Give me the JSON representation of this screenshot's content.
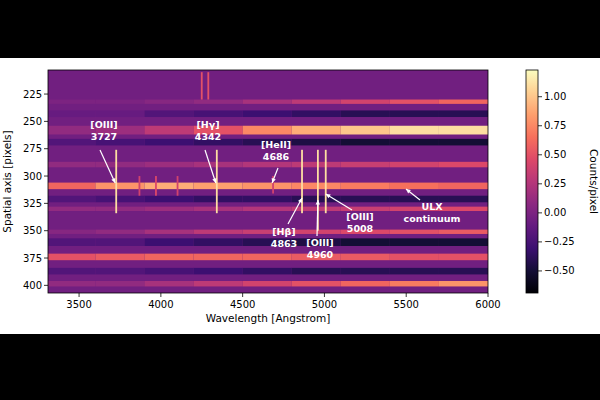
{
  "chart_data": {
    "type": "heatmap",
    "x_label": "Wavelength [Angstrom]",
    "y_label": "Spatial axis [pixels]",
    "xlim": [
      3310,
      6000
    ],
    "xticks": [
      3500,
      4000,
      4500,
      5000,
      5500,
      6000
    ],
    "ylim": [
      407,
      203
    ],
    "yticks": [
      225,
      250,
      275,
      300,
      325,
      350,
      375,
      400
    ],
    "background": -0.05,
    "x_bins": [
      3310,
      3600,
      3900,
      4200,
      4500,
      4800,
      5100,
      5400,
      5700,
      6000
    ],
    "rows": [
      {
        "y_range": [
          266,
          272
        ],
        "values": [
          -0.2,
          -0.25,
          -0.3,
          -0.35,
          -0.4,
          -0.45,
          -0.5,
          -0.5,
          -0.5
        ]
      },
      {
        "y_range": [
          318,
          324
        ],
        "values": [
          -0.2,
          -0.25,
          -0.3,
          -0.35,
          -0.35,
          -0.4,
          -0.4,
          -0.4,
          -0.4
        ]
      },
      {
        "y_range": [
          357,
          364
        ],
        "values": [
          -0.2,
          -0.2,
          -0.3,
          -0.35,
          -0.4,
          -0.45,
          -0.5,
          -0.5,
          -0.5
        ]
      },
      {
        "y_range": [
          384,
          390
        ],
        "values": [
          -0.2,
          -0.2,
          -0.25,
          -0.3,
          -0.35,
          -0.4,
          -0.4,
          -0.4,
          -0.4
        ]
      },
      {
        "y_range": [
          240,
          246
        ],
        "values": [
          -0.1,
          -0.1,
          -0.2,
          -0.25,
          -0.3,
          -0.35,
          -0.4,
          -0.4,
          -0.4
        ]
      },
      {
        "y_range": [
          254,
          262
        ],
        "values": [
          0.1,
          0.15,
          0.3,
          0.5,
          0.75,
          0.9,
          1.0,
          1.1,
          1.1
        ]
      },
      {
        "y_range": [
          306,
          312
        ],
        "values": [
          0.6,
          0.8,
          0.9,
          0.85,
          0.8,
          0.75,
          0.7,
          0.65,
          0.6
        ]
      },
      {
        "y_range": [
          371,
          377
        ],
        "values": [
          0.5,
          0.55,
          0.6,
          0.6,
          0.6,
          0.55,
          0.55,
          0.5,
          0.5
        ]
      },
      {
        "y_range": [
          349,
          353
        ],
        "values": [
          0.05,
          0.1,
          0.2,
          0.3,
          0.35,
          0.4,
          0.45,
          0.5,
          0.55
        ]
      },
      {
        "y_range": [
          396,
          401
        ],
        "values": [
          0.1,
          0.1,
          0.2,
          0.3,
          0.4,
          0.5,
          0.6,
          0.7,
          0.8
        ]
      },
      {
        "y_range": [
          230,
          234
        ],
        "values": [
          0,
          0,
          0.05,
          0.1,
          0.2,
          0.3,
          0.4,
          0.5,
          0.6
        ]
      },
      {
        "y_range": [
          287,
          292
        ],
        "values": [
          0.1,
          0.1,
          0.15,
          0.2,
          0.25,
          0.3,
          0.35,
          0.4,
          0.45
        ]
      },
      {
        "y_range": [
          328,
          332
        ],
        "values": [
          0.1,
          0.1,
          0.15,
          0.2,
          0.25,
          0.3,
          0.35,
          0.4,
          0.45
        ]
      }
    ],
    "lines": [
      {
        "name": "[OIII]",
        "wavelength": 3727,
        "y_range": [
          276,
          334
        ],
        "value": 1.1
      },
      {
        "name": "[Hγ]",
        "wavelength": 4342,
        "y_range": [
          276,
          334
        ],
        "value": 1.1
      },
      {
        "name": "[HeII]",
        "wavelength": 4686,
        "y_range": [
          300,
          316
        ],
        "value": 0.4
      },
      {
        "name": "[Hβ]",
        "wavelength": 4863,
        "y_range": [
          276,
          334
        ],
        "value": 1.1
      },
      {
        "name": "[OIII]",
        "wavelength": 4960,
        "y_range": [
          276,
          350
        ],
        "value": 1.1
      },
      {
        "name": "[OIII]",
        "wavelength": 5008,
        "y_range": [
          276,
          334
        ],
        "value": 1.1
      },
      {
        "wavelength": 3869,
        "y_range": [
          300,
          318
        ],
        "value": 0.4
      },
      {
        "wavelength": 3970,
        "y_range": [
          300,
          318
        ],
        "value": 0.45
      },
      {
        "wavelength": 4102,
        "y_range": [
          300,
          318
        ],
        "value": 0.4
      },
      {
        "wavelength": 4250,
        "y_range": [
          205,
          230
        ],
        "value": 0.5
      },
      {
        "wavelength": 4290,
        "y_range": [
          205,
          230
        ],
        "value": 0.5
      }
    ],
    "annotations": [
      {
        "text": "ULX continuum"
      }
    ],
    "colorbar": {
      "label": "Counts/pixel",
      "range": [
        -0.69,
        1.23
      ],
      "ticks": [
        {
          "value": -0.5,
          "label": "−0.50"
        },
        {
          "value": -0.25,
          "label": "−0.25"
        },
        {
          "value": 0,
          "label": "0.00"
        },
        {
          "value": 0.25,
          "label": "0.25"
        },
        {
          "value": 0.5,
          "label": "0.50"
        },
        {
          "value": 0.75,
          "label": "0.75"
        },
        {
          "value": 1,
          "label": "1.00"
        }
      ]
    }
  }
}
